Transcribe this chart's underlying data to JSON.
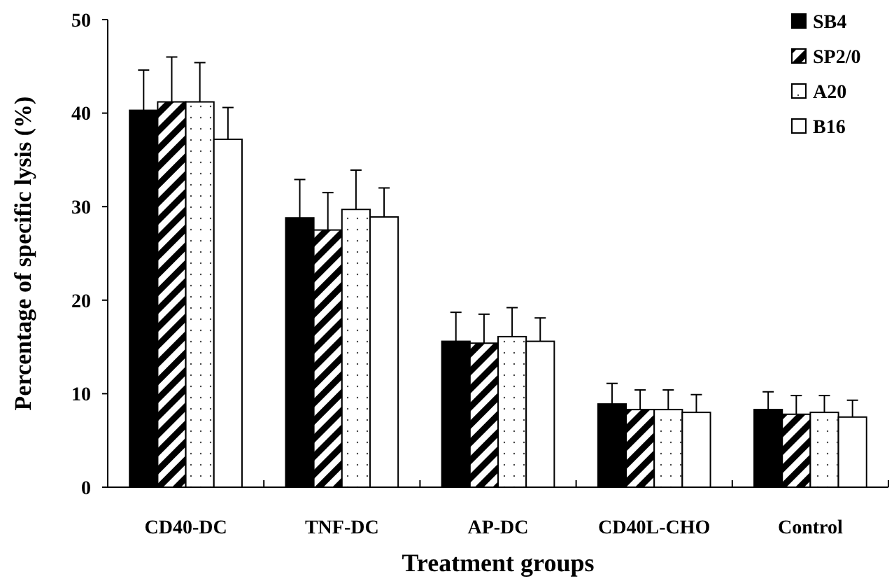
{
  "chart_data": {
    "type": "bar",
    "xlabel": "Treatment groups",
    "ylabel": "Percentage of specific lysis (%)",
    "categories": [
      "CD40-DC",
      "TNF-DC",
      "AP-DC",
      "CD40L-CHO",
      "Control"
    ],
    "series": [
      {
        "name": "SB4",
        "color": "#000000",
        "values": [
          40.3,
          28.8,
          15.6,
          8.9,
          8.3
        ],
        "errors": [
          4.3,
          4.1,
          3.1,
          2.2,
          1.9
        ]
      },
      {
        "name": "SP2/0",
        "color": "#000000",
        "values": [
          41.2,
          27.5,
          15.4,
          8.3,
          7.8
        ],
        "errors": [
          4.8,
          4.0,
          3.1,
          2.1,
          2.0
        ]
      },
      {
        "name": "A20",
        "color": "#ffffff",
        "values": [
          41.2,
          29.7,
          16.1,
          8.3,
          8.0
        ],
        "errors": [
          4.2,
          4.2,
          3.1,
          2.1,
          1.8
        ]
      },
      {
        "name": "B16",
        "color": "#ffffff",
        "values": [
          37.2,
          28.9,
          15.6,
          8.0,
          7.5
        ],
        "errors": [
          3.4,
          3.1,
          2.5,
          1.9,
          1.8
        ]
      }
    ],
    "ylim": [
      0,
      50
    ],
    "yticks": [
      0,
      10,
      20,
      30,
      40,
      50
    ],
    "legend": "top right",
    "grid": false
  }
}
